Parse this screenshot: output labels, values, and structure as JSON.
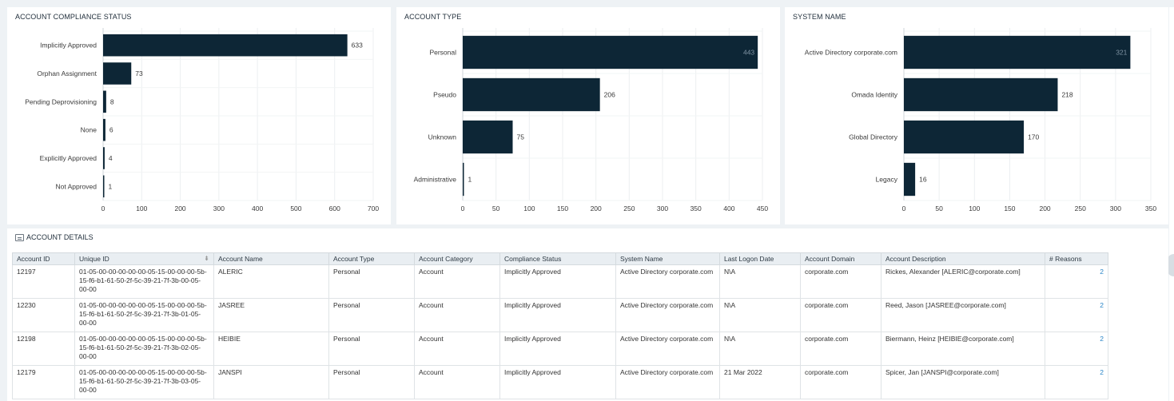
{
  "panels": [
    {
      "id": "compliance",
      "title": "ACCOUNT COMPLIANCE STATUS",
      "chart_data": {
        "type": "bar",
        "orientation": "horizontal",
        "categories": [
          "Implicitly Approved",
          "Orphan Assignment",
          "Pending Deprovisioning",
          "None",
          "Explicitly Approved",
          "Not Approved"
        ],
        "values": [
          633,
          73,
          8,
          6,
          4,
          1
        ],
        "xlim": [
          0,
          700
        ],
        "ticks": [
          0,
          100,
          200,
          300,
          400,
          500,
          600,
          700
        ],
        "grid": true,
        "bar_color": "#0d2636"
      }
    },
    {
      "id": "type",
      "title": "ACCOUNT TYPE",
      "chart_data": {
        "type": "bar",
        "orientation": "horizontal",
        "categories": [
          "Personal",
          "Pseudo",
          "Unknown",
          "Administrative"
        ],
        "values": [
          443,
          206,
          75,
          1
        ],
        "xlim": [
          0,
          450
        ],
        "ticks": [
          0,
          50,
          100,
          150,
          200,
          250,
          300,
          350,
          400,
          450
        ],
        "grid": true,
        "bar_color": "#0d2636"
      }
    },
    {
      "id": "system",
      "title": "SYSTEM NAME",
      "chart_data": {
        "type": "bar",
        "orientation": "horizontal",
        "categories": [
          "Active Directory corporate.com",
          "Omada Identity",
          "Global Directory",
          "Legacy"
        ],
        "values": [
          321,
          218,
          170,
          16
        ],
        "xlim": [
          0,
          350
        ],
        "ticks": [
          0,
          50,
          100,
          150,
          200,
          250,
          300,
          350
        ],
        "grid": true,
        "bar_color": "#0d2636"
      }
    }
  ],
  "details": {
    "title": "ACCOUNT DETAILS",
    "icon": "table-icon",
    "columns": [
      "Account ID",
      "Unique ID",
      "Account Name",
      "Account Type",
      "Account Category",
      "Compliance Status",
      "System Name",
      "Last Logon Date",
      "Account Domain",
      "Account Description",
      "# Reasons"
    ],
    "rows": [
      [
        "12197",
        "01-05-00-00-00-00-00-05-15-00-00-00-5b-15-f6-b1-61-50-2f-5c-39-21-7f-3b-00-05-00-00",
        "ALERIC",
        "Personal",
        "Account",
        "Implicitly Approved",
        "Active Directory corporate.com",
        "N\\A",
        "corporate.com",
        "Rickes, Alexander [ALERIC@corporate.com]",
        "2"
      ],
      [
        "12230",
        "01-05-00-00-00-00-00-05-15-00-00-00-5b-15-f6-b1-61-50-2f-5c-39-21-7f-3b-01-05-00-00",
        "JASREE",
        "Personal",
        "Account",
        "Implicitly Approved",
        "Active Directory corporate.com",
        "N\\A",
        "corporate.com",
        "Reed, Jason [JASREE@corporate.com]",
        "2"
      ],
      [
        "12198",
        "01-05-00-00-00-00-00-05-15-00-00-00-5b-15-f6-b1-61-50-2f-5c-39-21-7f-3b-02-05-00-00",
        "HEIBIE",
        "Personal",
        "Account",
        "Implicitly Approved",
        "Active Directory corporate.com",
        "N\\A",
        "corporate.com",
        "Biermann, Heinz [HEIBIE@corporate.com]",
        "2"
      ],
      [
        "12179",
        "01-05-00-00-00-00-00-05-15-00-00-00-5b-15-f6-b1-61-50-2f-5c-39-21-7f-3b-03-05-00-00",
        "JANSPI",
        "Personal",
        "Account",
        "Implicitly Approved",
        "Active Directory corporate.com",
        "21 Mar 2022",
        "corporate.com",
        "Spicer, Jan [JANSPI@corporate.com]",
        "2"
      ]
    ]
  }
}
